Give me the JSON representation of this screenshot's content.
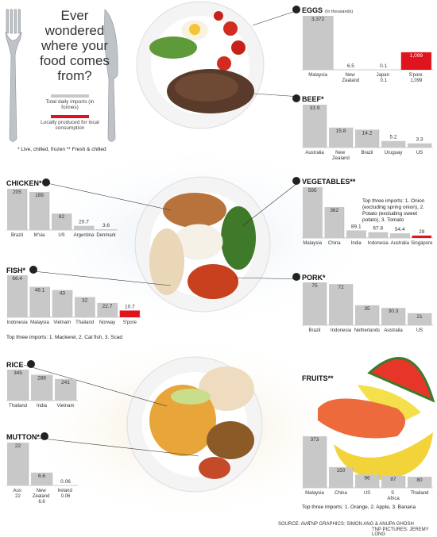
{
  "header": {
    "title": "Ever wondered where your food comes from?",
    "legend": [
      {
        "label": "Total daily imports (in fonnes)",
        "color": "#c8c8c8"
      },
      {
        "label": "Locally produced for local consumption",
        "color": "#e0141e"
      }
    ],
    "footnote": "* Live, chilled, frozen  ** Fresh & chilled"
  },
  "footer": {
    "source": "SOURCE: AVA",
    "graphics": "TNP GRAPHICS: SIMON ANG & ANUPA GHOSH",
    "pictures": "TNP PICTURES: JEREMY LONG"
  },
  "chart_data": [
    {
      "type": "bar",
      "title": "EGGS",
      "subtitle": "(In thousands)",
      "categories": [
        "Malaysia",
        "New Zealand",
        "Japan 0.1",
        "S'pore 1,099"
      ],
      "values": [
        3372,
        6.5,
        0.1,
        1099
      ],
      "value_labels": [
        "3,372",
        "6.5",
        "0.1",
        "1,099"
      ],
      "colors": [
        "#c8c8c8",
        "#c8c8c8",
        "#c8c8c8",
        "#e0141e"
      ]
    },
    {
      "type": "bar",
      "title": "BEEF*",
      "categories": [
        "Australia",
        "New Zealand",
        "Brazil",
        "Uruguay",
        "US"
      ],
      "values": [
        33.9,
        15.8,
        14.2,
        5.2,
        3.3
      ],
      "colors": [
        "#c8c8c8",
        "#c8c8c8",
        "#c8c8c8",
        "#c8c8c8",
        "#c8c8c8"
      ]
    },
    {
      "type": "bar",
      "title": "CHICKEN*",
      "categories": [
        "Brazil",
        "M'sia",
        "US",
        "Argentina",
        "Denmark"
      ],
      "values": [
        205,
        189,
        82,
        20.7,
        3.6
      ],
      "colors": [
        "#c8c8c8",
        "#c8c8c8",
        "#c8c8c8",
        "#c8c8c8",
        "#c8c8c8"
      ]
    },
    {
      "type": "bar",
      "title": "VEGETABLES**",
      "categories": [
        "Malaysia",
        "China",
        "India",
        "Indonesia",
        "Australia",
        "Singapore"
      ],
      "values": [
        595,
        362,
        89.1,
        67.8,
        54.4,
        28
      ],
      "colors": [
        "#c8c8c8",
        "#c8c8c8",
        "#c8c8c8",
        "#c8c8c8",
        "#c8c8c8",
        "#e0141e"
      ],
      "note": "Top three imports: 1. Onion (excluding spring onion), 2. Potato (excluding sweet potato), 3. Tomato"
    },
    {
      "type": "bar",
      "title": "FISH*",
      "categories": [
        "Indonesia",
        "Malaysia",
        "Vietnam",
        "Thailand",
        "Norway",
        "S'pore"
      ],
      "values": [
        66.4,
        48.1,
        43,
        32,
        22.7,
        10.7
      ],
      "colors": [
        "#c8c8c8",
        "#c8c8c8",
        "#c8c8c8",
        "#c8c8c8",
        "#c8c8c8",
        "#e0141e"
      ],
      "note": "Top three imports: 1. Mackerel, 2. Cat fish, 3. Scad"
    },
    {
      "type": "bar",
      "title": "PORK*",
      "categories": [
        "Brazil",
        "Indonesia",
        "Netherlands",
        "Australia",
        "US"
      ],
      "values": [
        75,
        72,
        35,
        30.3,
        21
      ],
      "colors": [
        "#c8c8c8",
        "#c8c8c8",
        "#c8c8c8",
        "#c8c8c8",
        "#c8c8c8"
      ]
    },
    {
      "type": "bar",
      "title": "RICE",
      "categories": [
        "Thailand",
        "India",
        "Vietnam"
      ],
      "values": [
        345,
        288,
        241
      ],
      "colors": [
        "#c8c8c8",
        "#c8c8c8",
        "#c8c8c8"
      ]
    },
    {
      "type": "bar",
      "title": "MUTTON*",
      "categories": [
        "Aus 22",
        "New Zealand 6.6",
        "Ireland 0.06"
      ],
      "values": [
        22,
        6.6,
        0.06
      ],
      "colors": [
        "#c8c8c8",
        "#c8c8c8",
        "#c8c8c8"
      ]
    },
    {
      "type": "bar",
      "title": "FRUITS**",
      "categories": [
        "Malaysia",
        "China",
        "US",
        "S Africa",
        "Thailand"
      ],
      "values": [
        373,
        150,
        96,
        87,
        80
      ],
      "colors": [
        "#c8c8c8",
        "#c8c8c8",
        "#c8c8c8",
        "#c8c8c8",
        "#c8c8c8"
      ],
      "note": "Top three imports: 1. Orange, 2. Apple, 3. Banana"
    }
  ]
}
